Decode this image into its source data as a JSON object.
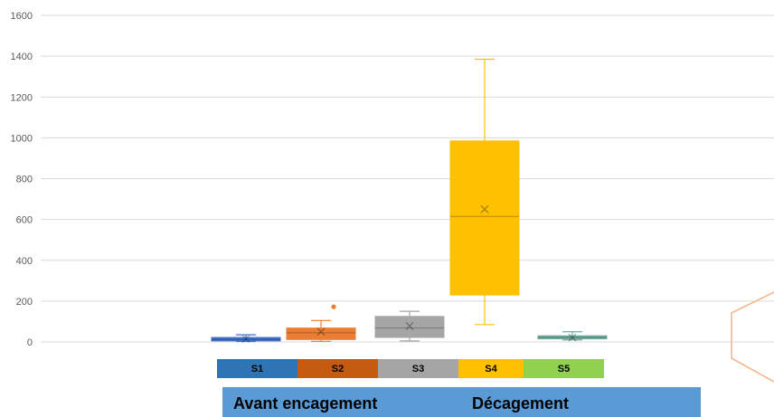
{
  "chart_data": {
    "type": "box",
    "title": "",
    "xlabel": "",
    "ylabel": "",
    "ylim": [
      0,
      1600
    ],
    "yticks": [
      0,
      200,
      400,
      600,
      800,
      1000,
      1200,
      1400,
      1600
    ],
    "grid": true,
    "series": [
      {
        "label": "S1",
        "color": "#4472c4",
        "min": 2,
        "q1": 5,
        "median": 12,
        "q3": 22,
        "max": 35,
        "mean": 15,
        "outliers": []
      },
      {
        "label": "S2",
        "color": "#ed7d31",
        "min": 3,
        "q1": 12,
        "median": 45,
        "q3": 68,
        "max": 105,
        "mean": 50,
        "outliers": [
          172
        ]
      },
      {
        "label": "S3",
        "color": "#a5a5a5",
        "min": 5,
        "q1": 22,
        "median": 68,
        "q3": 125,
        "max": 150,
        "mean": 78,
        "outliers": []
      },
      {
        "label": "S4",
        "color": "#ffc000",
        "min": 85,
        "q1": 230,
        "median": 615,
        "q3": 985,
        "max": 1385,
        "mean": 650,
        "outliers": []
      },
      {
        "label": "S5",
        "color": "#70ad9c",
        "min": 10,
        "q1": 15,
        "median": 22,
        "q3": 30,
        "max": 50,
        "mean": 22,
        "outliers": []
      }
    ]
  },
  "legend": {
    "items": [
      {
        "label": "S1",
        "color": "#2e75b6"
      },
      {
        "label": "S2",
        "color": "#c55a11"
      },
      {
        "label": "S3",
        "color": "#a5a5a5"
      },
      {
        "label": "S4",
        "color": "#ffc000"
      },
      {
        "label": "S5",
        "color": "#92d050"
      }
    ]
  },
  "phases": {
    "before": "Avant encagement",
    "after": "Décagement",
    "color": "#5b9bd5"
  }
}
